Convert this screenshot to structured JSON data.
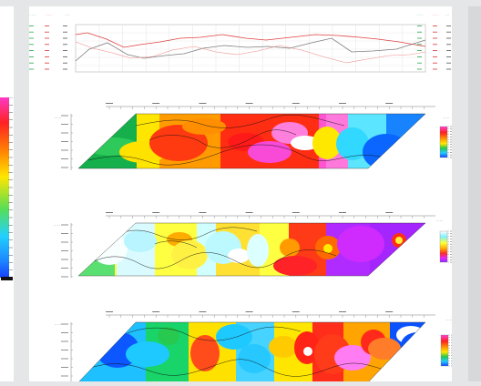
{
  "top_profile": {
    "left_axis_header_green": "……",
    "left_axis_header_red": "……",
    "left_axis_header_black": "…",
    "right_axis_header_green": "……",
    "right_axis_header_red": "……",
    "right_axis_header_black": "…"
  },
  "sections": [
    {
      "id": "section-1",
      "title_left": "……",
      "legend_title": "……",
      "dominant_colors": [
        "#19b34a",
        "#ffe600",
        "#ff8800",
        "#ff2a12",
        "#f23bd3",
        "#ffffff",
        "#44e2ff",
        "#0f7dff"
      ]
    },
    {
      "id": "section-2",
      "title_left": "……",
      "legend_title": "……",
      "dominant_colors": [
        "#d8fbff",
        "#ffff3c",
        "#ffba00",
        "#ff2222",
        "#e22bff",
        "#a92bff",
        "#27c94c"
      ]
    },
    {
      "id": "section-3",
      "title_left": "……",
      "legend_title": "……",
      "dominant_colors": [
        "#0c57ff",
        "#2bc6ff",
        "#22d26a",
        "#ffe100",
        "#ff2e1a",
        "#ff7cf2",
        "#ffffff"
      ]
    }
  ],
  "colors": {
    "page_bg": "#e4e6e7",
    "paper": "#ffffff",
    "grid": "#b8b8b8",
    "label_green": "#29a64a",
    "label_red": "#dd3333",
    "label_black": "#444444"
  }
}
